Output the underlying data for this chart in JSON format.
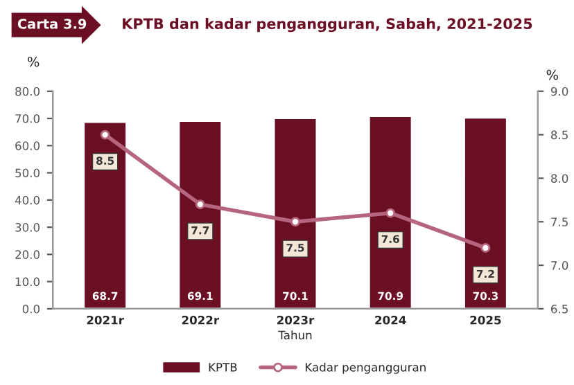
{
  "chart_data": {
    "type": "bar",
    "title": "KPTB dan kadar pengangguran, Sabah, 2021-2025",
    "annotations": [
      "Carta 3.9"
    ],
    "xlabel": "Tahun",
    "ylabel": "%",
    "y2label": "%",
    "categories": [
      "2021r",
      "2022r",
      "2023r",
      "2024",
      "2025"
    ],
    "series": [
      {
        "name": "KPTB",
        "color": "#6b0f24",
        "values": [
          68.7,
          69.1,
          70.1,
          70.9,
          70.3
        ]
      },
      {
        "name": "Kadar pengangguran",
        "type": "line",
        "axis": "y2",
        "color": "#b5657d",
        "marker": "circle",
        "values": [
          8.5,
          7.7,
          7.5,
          7.6,
          7.2
        ]
      }
    ],
    "ylim": [
      0,
      80
    ],
    "yticks": [
      {
        "value": 0,
        "label": "0.0"
      },
      {
        "value": 10,
        "label": "10.0"
      },
      {
        "value": 20,
        "label": "20.0"
      },
      {
        "value": 30,
        "label": "30.0"
      },
      {
        "value": 40,
        "label": "40.0"
      },
      {
        "value": 50,
        "label": "50.0"
      },
      {
        "value": 60,
        "label": "60.0"
      },
      {
        "value": 70,
        "label": "70.0"
      },
      {
        "value": 80,
        "label": "80.0"
      }
    ],
    "y2lim": [
      6.5,
      9.0
    ],
    "y2ticks": [
      6.5,
      {
        "value": 7,
        "label": "7.0"
      },
      7.5,
      {
        "value": 8,
        "label": "8.0"
      },
      8.5,
      {
        "value": 9,
        "label": "9.0"
      }
    ],
    "data_labels": true,
    "legend": "bottom",
    "grid": false
  }
}
